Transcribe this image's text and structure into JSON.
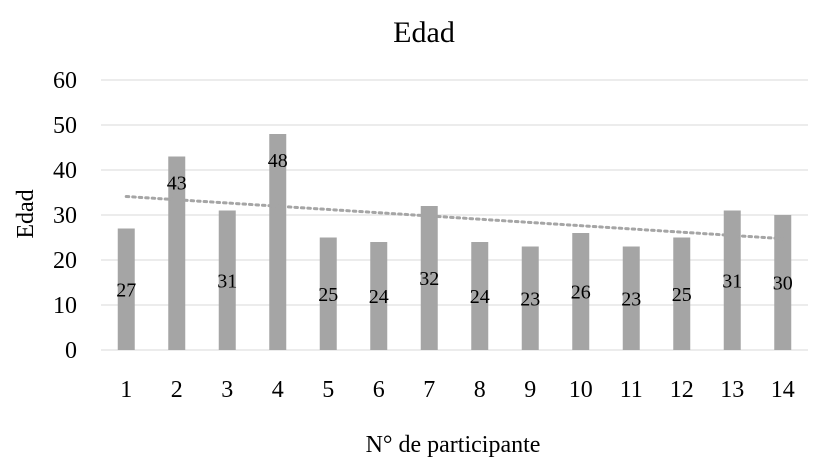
{
  "chart_data": {
    "type": "bar",
    "title": "Edad",
    "xlabel": "N° de participante",
    "ylabel": "Edad",
    "categories": [
      "1",
      "2",
      "3",
      "4",
      "5",
      "6",
      "7",
      "8",
      "9",
      "10",
      "11",
      "12",
      "13",
      "14"
    ],
    "values": [
      27,
      43,
      31,
      48,
      25,
      24,
      32,
      24,
      23,
      26,
      23,
      25,
      31,
      30
    ],
    "data_labels": [
      "27",
      "43",
      "31",
      "48",
      "25",
      "24",
      "32",
      "24",
      "23",
      "26",
      "23",
      "25",
      "31",
      "30"
    ],
    "yticks": [
      "0",
      "10",
      "20",
      "30",
      "40",
      "50",
      "60"
    ],
    "ylim": [
      0,
      60
    ],
    "grid": true,
    "legend": "none",
    "trendline": {
      "type": "linear",
      "style": "dotted"
    },
    "colors": {
      "bar": "#a5a5a5",
      "trendline": "#a5a5a5",
      "grid": "#d9d9d9"
    }
  }
}
